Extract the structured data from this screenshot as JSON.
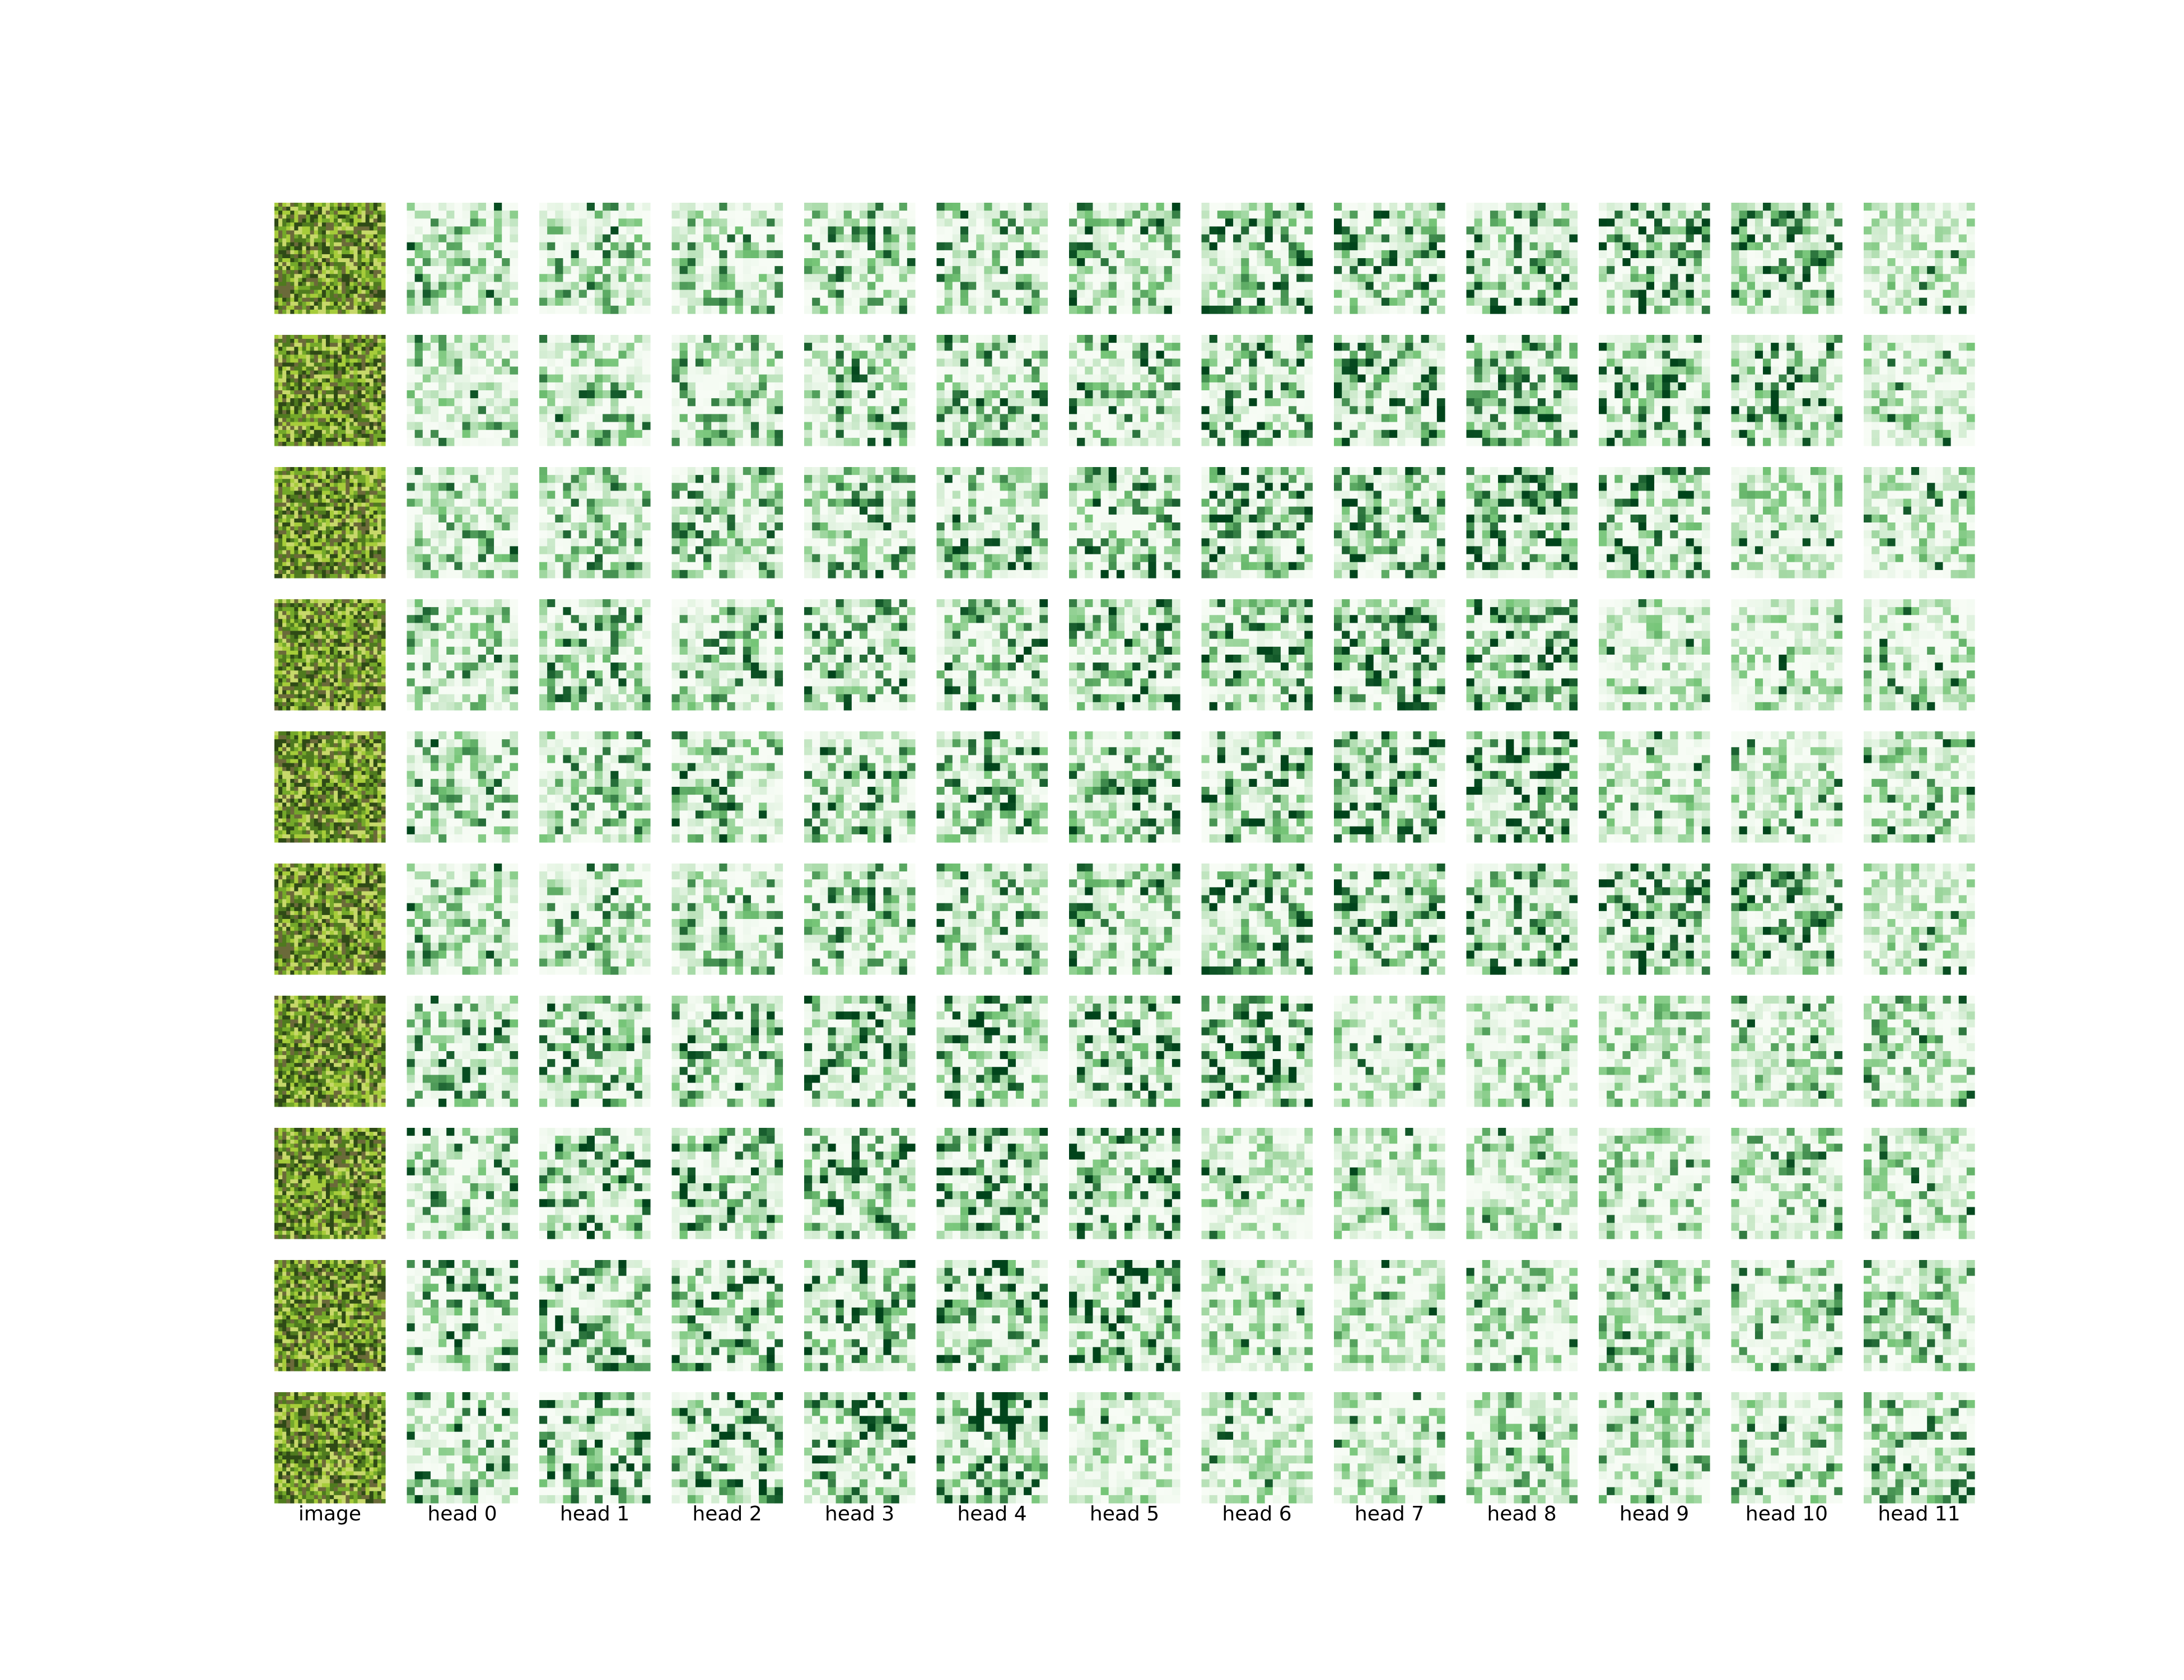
{
  "chart_data": {
    "type": "heatmap",
    "title": "",
    "column_labels": [
      "image",
      "head 0",
      "head 1",
      "head 2",
      "head 3",
      "head 4",
      "head 5",
      "head 6",
      "head 7",
      "head 8",
      "head 9",
      "head 10",
      "head 11"
    ],
    "rows": 10,
    "heads": 12,
    "grid_size": 14,
    "colormap": "Greens",
    "colormap_low": "#f7fcf5",
    "colormap_high": "#00441b",
    "image_palette": [
      "#2f4a16",
      "#4f7a1f",
      "#74a82a",
      "#a6cc3a",
      "#c7d86a",
      "#6b6a3a"
    ],
    "duplicate_rows": [
      [
        0,
        5
      ]
    ],
    "grid": false,
    "legend": "none"
  }
}
